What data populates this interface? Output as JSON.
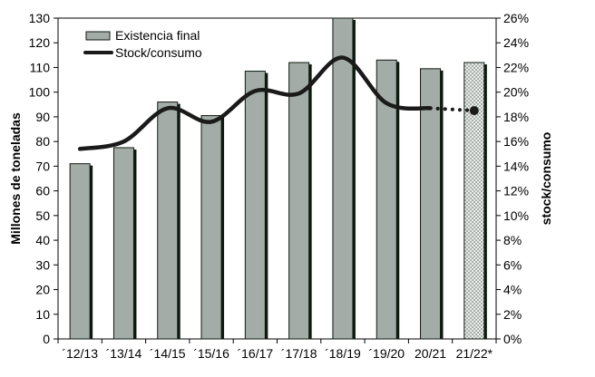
{
  "chart_data": {
    "type": "bar",
    "categories": [
      "´12/13",
      "´13/14",
      "´14/15",
      "´15/16",
      "´16/17",
      "´17/18",
      "´18/19",
      "´19/20",
      "20/21",
      "21/22*"
    ],
    "series": [
      {
        "name": "Existencia final",
        "type": "bar",
        "axis": "left",
        "values": [
          71,
          77.5,
          96,
          90.5,
          108.5,
          112,
          130,
          113,
          109.5,
          112
        ],
        "projected_index": 9,
        "color": "#a3aca6",
        "shadow_color": "#0e1a10"
      },
      {
        "name": "Stock/consumo",
        "type": "line",
        "axis": "right",
        "values": [
          15.4,
          16.0,
          18.7,
          17.6,
          20.1,
          19.9,
          22.8,
          19.1,
          18.7,
          18.5
        ],
        "dotted_from_index": 8,
        "color": "#1a1a1a"
      }
    ],
    "y_left": {
      "label": "Millones de toneladas",
      "min": 0,
      "max": 130,
      "step": 10,
      "ticks": [
        "0",
        "10",
        "20",
        "30",
        "40",
        "50",
        "60",
        "70",
        "80",
        "90",
        "100",
        "110",
        "120",
        "130"
      ]
    },
    "y_right": {
      "label": "stock/consumo",
      "min": 0,
      "max": 26,
      "step": 2,
      "ticks": [
        "0%",
        "2%",
        "4%",
        "6%",
        "8%",
        "10%",
        "12%",
        "14%",
        "16%",
        "18%",
        "20%",
        "22%",
        "24%",
        "26%"
      ]
    },
    "legend": {
      "position": "top-left"
    },
    "grid": false
  }
}
